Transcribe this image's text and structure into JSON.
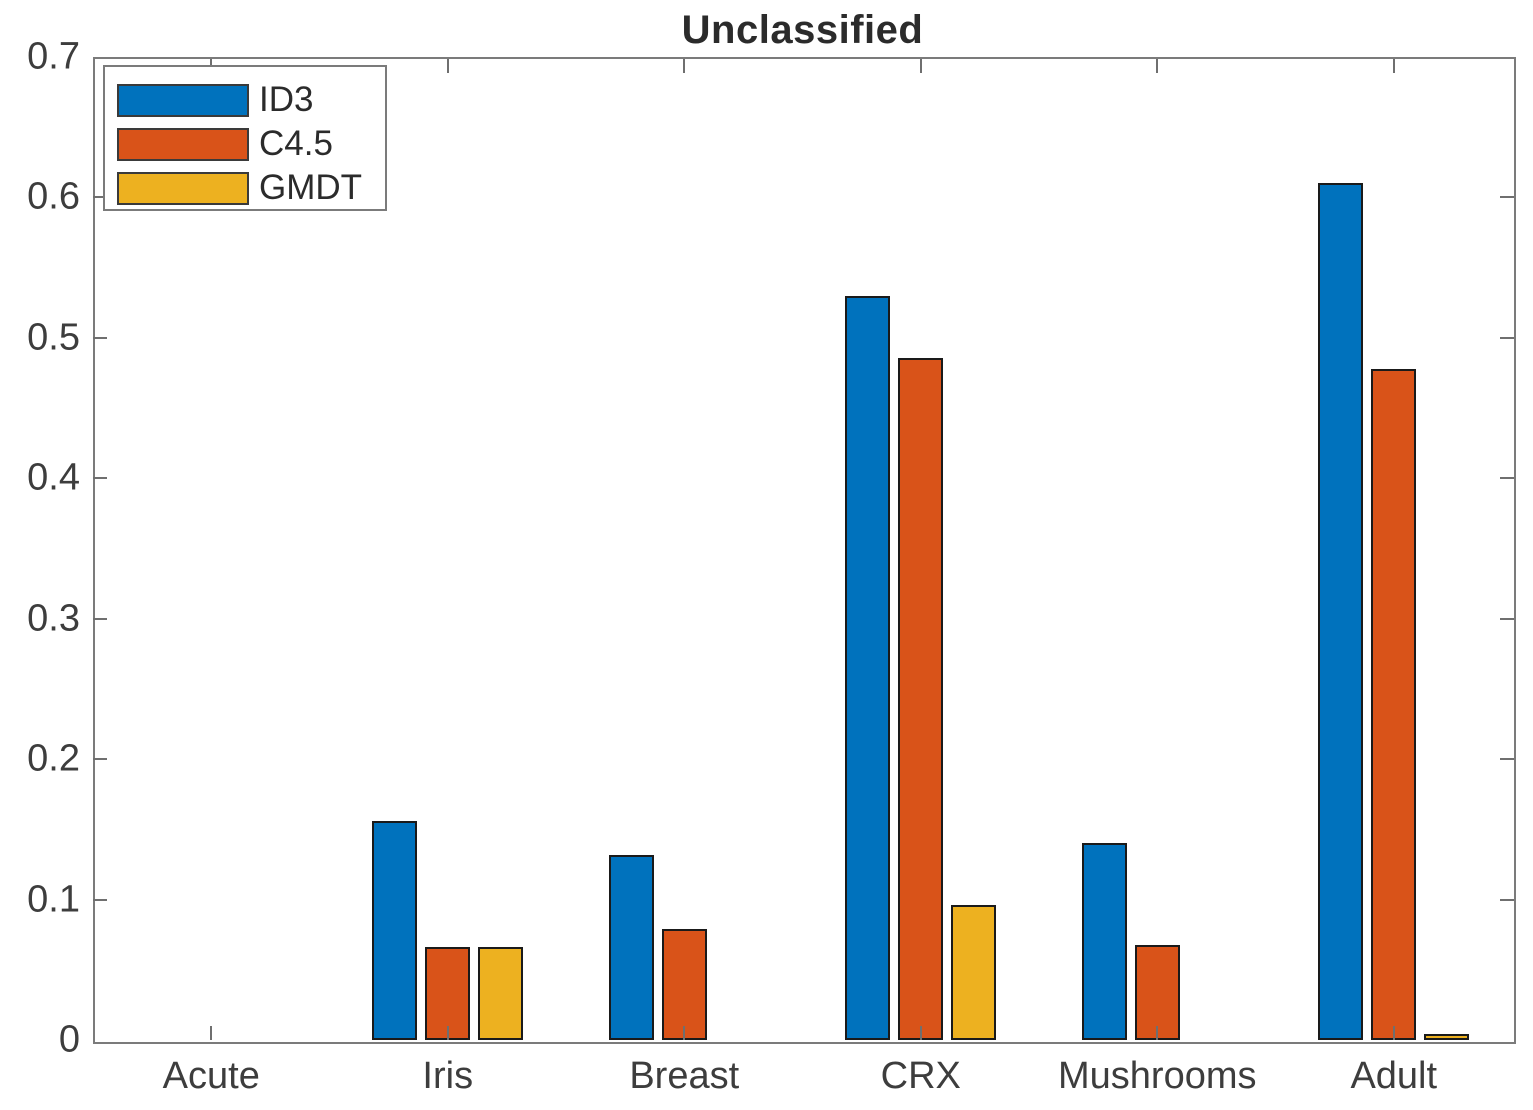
{
  "chart_data": {
    "type": "bar",
    "title": "Unclassified",
    "categories": [
      "Acute",
      "Iris",
      "Breast",
      "CRX",
      "Mushrooms",
      "Adult"
    ],
    "series": [
      {
        "name": "ID3",
        "color": "#0072BD",
        "values": [
          0,
          0.156,
          0.132,
          0.53,
          0.14,
          0.61
        ]
      },
      {
        "name": "C4.5",
        "color": "#D95319",
        "values": [
          0,
          0.066,
          0.079,
          0.486,
          0.068,
          0.478
        ]
      },
      {
        "name": "GMDT",
        "color": "#EDB120",
        "values": [
          0,
          0.066,
          0.0,
          0.096,
          0.0,
          0.004
        ]
      }
    ],
    "ylim": [
      0,
      0.7
    ],
    "yticks": [
      0,
      0.1,
      0.2,
      0.3,
      0.4,
      0.5,
      0.6,
      0.7
    ],
    "ytick_labels": [
      "0",
      "0.1",
      "0.2",
      "0.3",
      "0.4",
      "0.5",
      "0.6",
      "0.7"
    ],
    "xlabel": "",
    "ylabel": "",
    "grid": false,
    "legend_position": "top-left",
    "bar_edge_color": "#1a1a1a",
    "axis_color": "#7b7b7b",
    "tick_direction": "in"
  }
}
